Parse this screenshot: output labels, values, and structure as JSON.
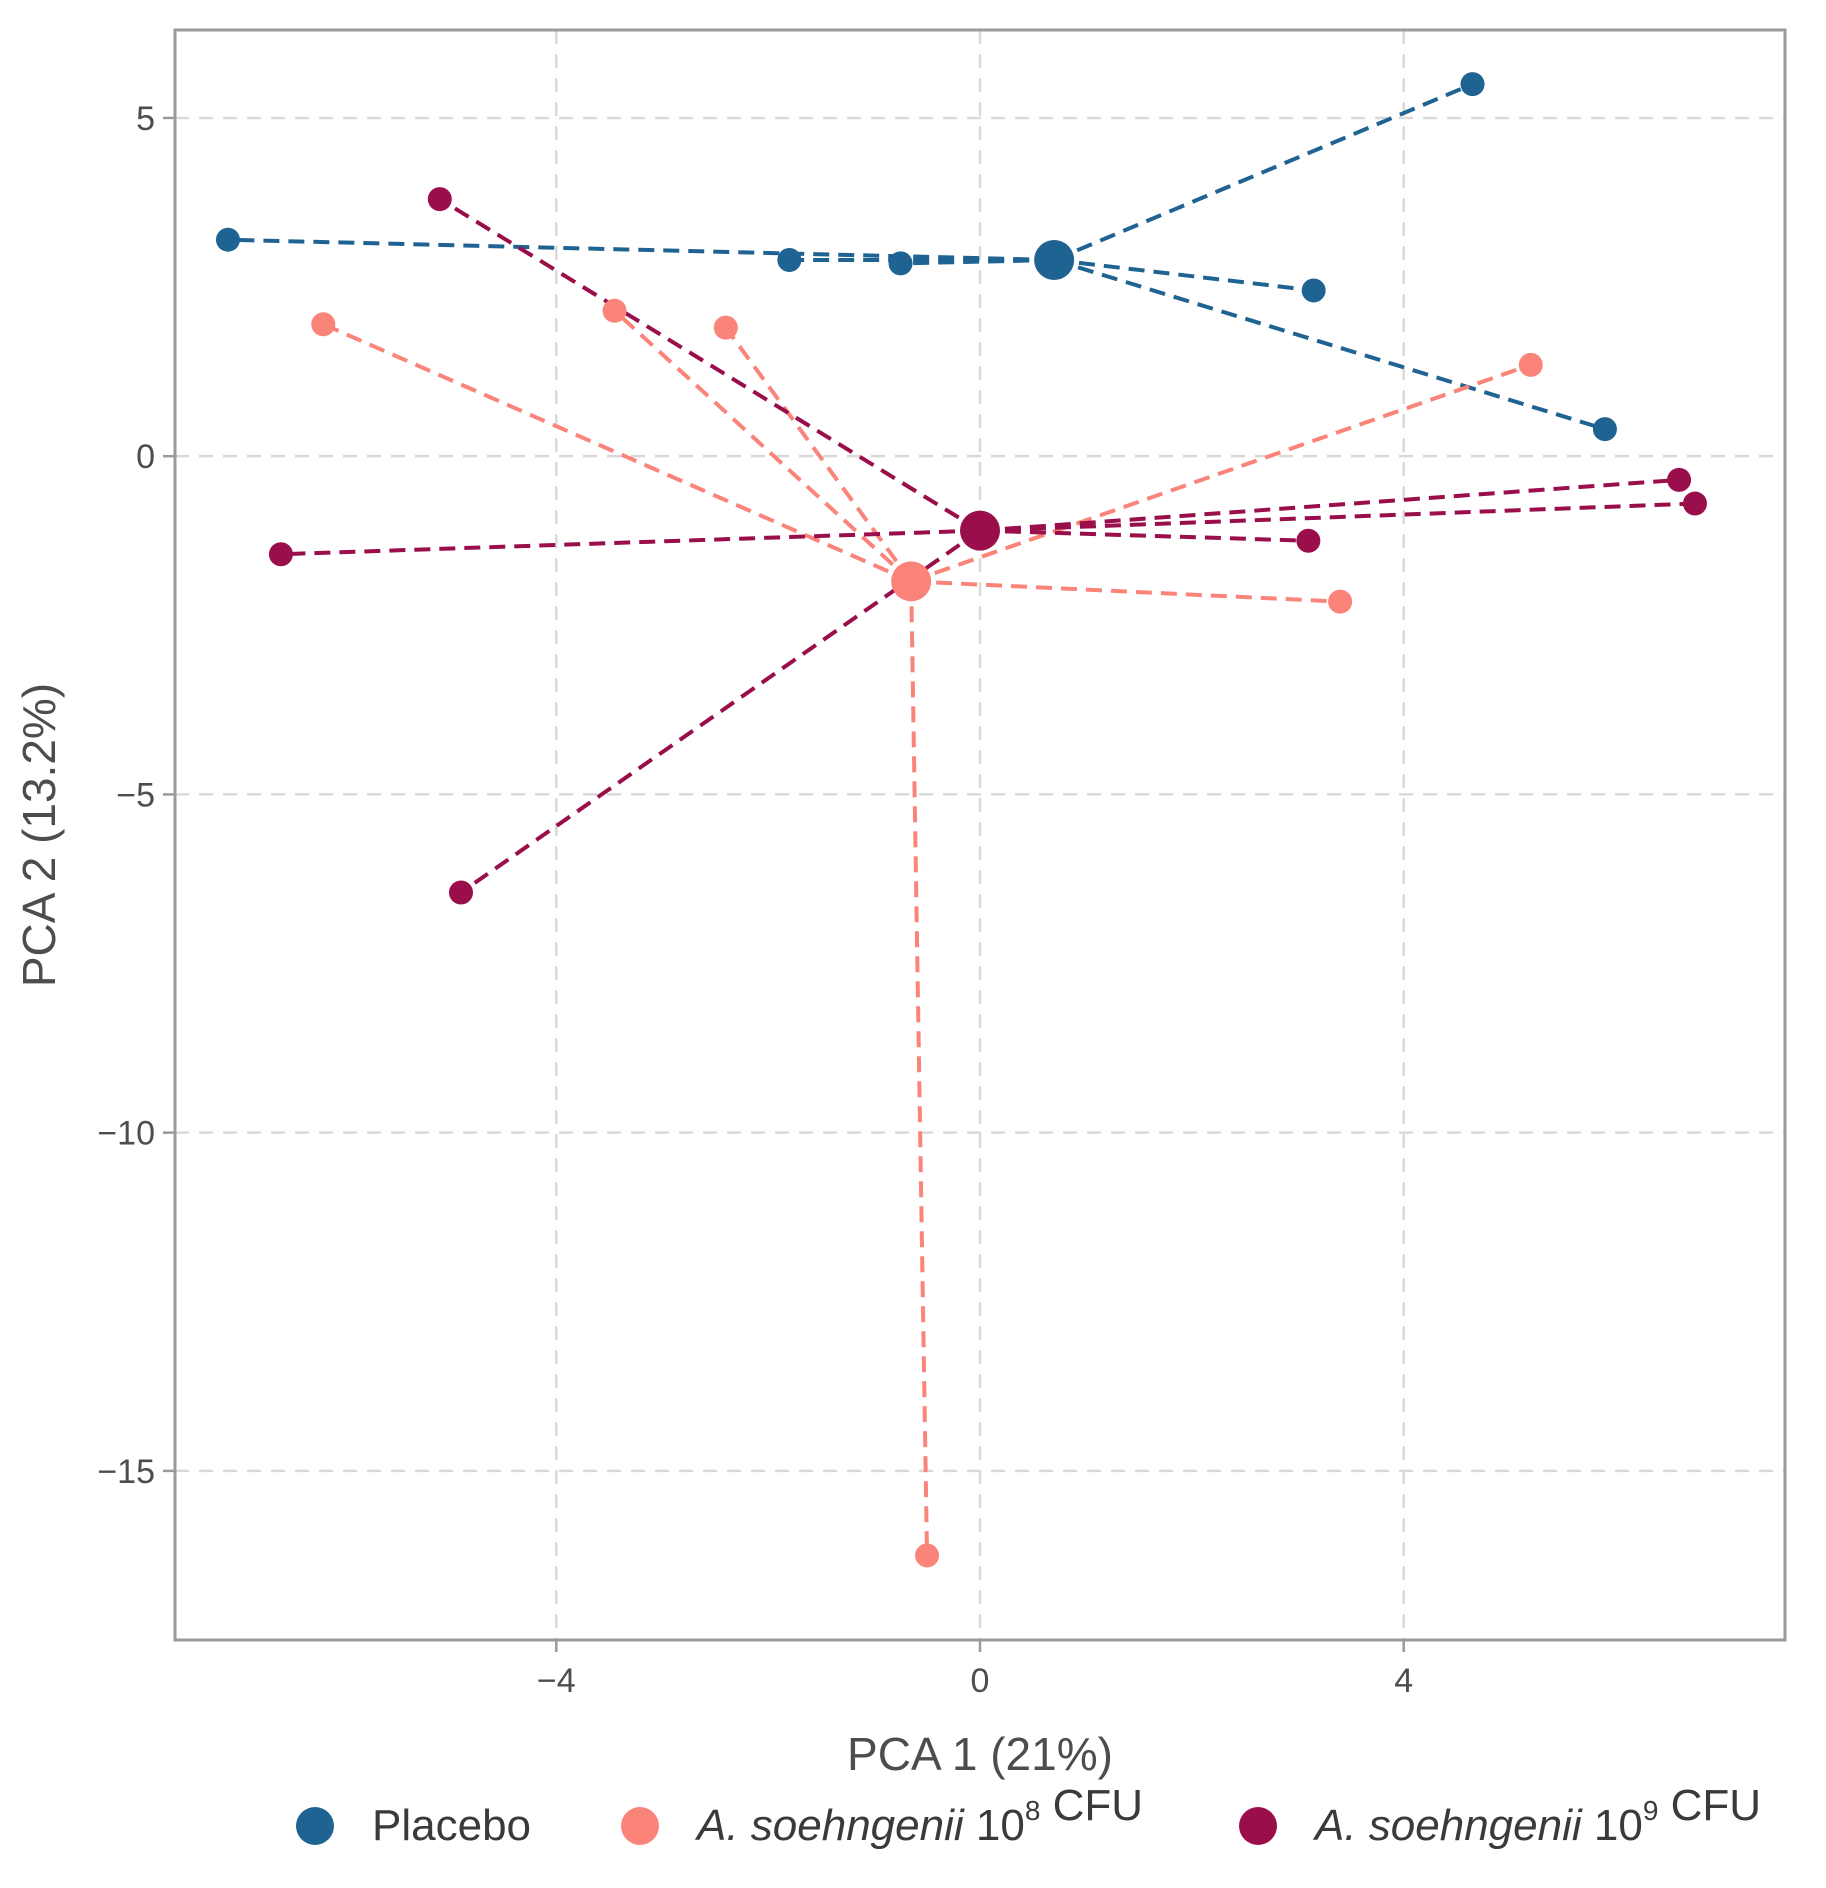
{
  "chart_data": {
    "type": "scatter",
    "title": "",
    "xlabel": "PCA 1 (21%)",
    "ylabel": "PCA 2 (13.2%)",
    "xlim": [
      -7.6,
      7.6
    ],
    "ylim": [
      -17.5,
      6.3
    ],
    "xticks": [
      -4,
      0,
      4
    ],
    "xtick_labels": [
      "−4",
      "0",
      "4"
    ],
    "yticks": [
      5,
      0,
      -5,
      -10,
      -15
    ],
    "ytick_labels": [
      "5",
      "0",
      "−5",
      "−10",
      "−15"
    ],
    "grid": true,
    "legend_position": "bottom",
    "series": [
      {
        "name": "Placebo",
        "legend_parts": [
          {
            "text": "Placebo",
            "italic": false,
            "sup": ""
          }
        ],
        "color": "#1f6393",
        "centroid": [
          0.7,
          2.9
        ],
        "points": [
          [
            -7.1,
            3.2
          ],
          [
            -1.8,
            2.9
          ],
          [
            -0.75,
            2.85
          ],
          [
            3.15,
            2.45
          ],
          [
            4.65,
            5.5
          ],
          [
            5.9,
            0.4
          ]
        ]
      },
      {
        "name": "A. soehngenii 10^8 CFU",
        "legend_parts": [
          {
            "text": "A. soehngenii",
            "italic": true,
            "sup": ""
          },
          {
            "text": " 10",
            "italic": false,
            "sup": "8"
          },
          {
            "text": " CFU",
            "italic": false,
            "sup": ""
          }
        ],
        "color": "#fa8479",
        "centroid": [
          -0.65,
          -1.85
        ],
        "points": [
          [
            -6.2,
            1.95
          ],
          [
            -3.45,
            2.15
          ],
          [
            -2.4,
            1.9
          ],
          [
            5.2,
            1.35
          ],
          [
            3.4,
            -2.15
          ],
          [
            -0.5,
            -16.25
          ]
        ]
      },
      {
        "name": "A. soehngenii 10^9 CFU",
        "legend_parts": [
          {
            "text": "A. soehngenii",
            "italic": true,
            "sup": ""
          },
          {
            "text": " 10",
            "italic": false,
            "sup": "9"
          },
          {
            "text": " CFU",
            "italic": false,
            "sup": ""
          }
        ],
        "color": "#9a0e4b",
        "centroid": [
          0.0,
          -1.1
        ],
        "points": [
          [
            -5.1,
            3.8
          ],
          [
            -6.6,
            -1.45
          ],
          [
            -4.9,
            -6.45
          ],
          [
            3.1,
            -1.25
          ],
          [
            6.6,
            -0.35
          ],
          [
            6.75,
            -0.7
          ]
        ]
      }
    ]
  }
}
